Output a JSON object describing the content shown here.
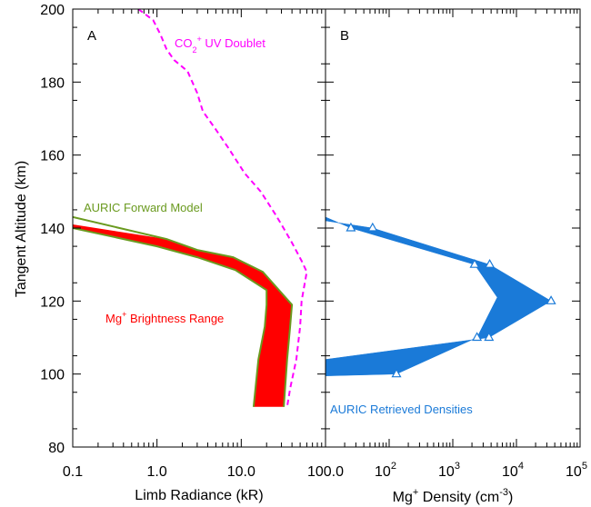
{
  "chart_data": [
    {
      "panel_label": "A",
      "type": "area",
      "x_scale": "log",
      "xlim": [
        0.1,
        100
      ],
      "ylim": [
        80,
        200
      ],
      "x_tick_labels": [
        "0.1",
        "1.0",
        "10.0",
        "100.0"
      ],
      "y_tick_labels": [
        "80",
        "100",
        "120",
        "140",
        "160",
        "180",
        "200"
      ],
      "xlabel": "Limb Radiance (kR)",
      "ylabel": "Tangent Altitude (km)",
      "grid": false,
      "series": [
        {
          "name": "CO2+ UV Doublet",
          "label_main": "CO",
          "label_sub": "2",
          "label_sup": "+",
          "label_tail": " UV Doublet",
          "style": "dashed",
          "color": "#ff00ff",
          "points": [
            [
              0.6,
              200
            ],
            [
              0.9,
              197
            ],
            [
              1.1,
              193
            ],
            [
              1.3,
              189
            ],
            [
              1.6,
              186
            ],
            [
              2.3,
              183
            ],
            [
              3.0,
              177
            ],
            [
              3.5,
              172
            ],
            [
              5,
              167
            ],
            [
              7,
              162
            ],
            [
              11,
              155
            ],
            [
              17,
              150
            ],
            [
              25,
              144
            ],
            [
              30,
              141
            ],
            [
              40,
              136
            ],
            [
              52,
              131
            ],
            [
              60,
              128
            ],
            [
              52,
              120
            ],
            [
              50,
              113
            ],
            [
              45,
              104
            ],
            [
              38,
              96
            ],
            [
              35,
              91
            ]
          ]
        },
        {
          "name": "Mg+ Brightness Range",
          "label_main": "Mg",
          "label_sup": "+",
          "label_tail": " Brightness Range",
          "style": "band",
          "color": "#ff0000",
          "low": [
            [
              0.1,
              140
            ],
            [
              1.0,
              135
            ],
            [
              3,
              132
            ],
            [
              8.5,
              128.5
            ],
            [
              20,
              123
            ],
            [
              20,
              119
            ],
            [
              19,
              113
            ],
            [
              16,
              104
            ],
            [
              14,
              91
            ]
          ],
          "high": [
            [
              0.1,
              141
            ],
            [
              1.3,
              137
            ],
            [
              3,
              134
            ],
            [
              8,
              132
            ],
            [
              18,
              128
            ],
            [
              40,
              119
            ],
            [
              38,
              113
            ],
            [
              35,
              104
            ],
            [
              32,
              91
            ]
          ]
        },
        {
          "name": "AURIC Forward Model",
          "style": "line",
          "color": "#6a9a1f",
          "low": [
            [
              0.1,
              140
            ],
            [
              1.0,
              135
            ],
            [
              3,
              132
            ],
            [
              8.5,
              128.5
            ],
            [
              20,
              123
            ],
            [
              20,
              119
            ],
            [
              19,
              113
            ],
            [
              16,
              104
            ],
            [
              14,
              91
            ]
          ],
          "high": [
            [
              0.1,
              143
            ],
            [
              1.3,
              137
            ],
            [
              3,
              134
            ],
            [
              8,
              132
            ],
            [
              18,
              128
            ],
            [
              40,
              119
            ],
            [
              38,
              113
            ],
            [
              35,
              104
            ],
            [
              32,
              91
            ]
          ]
        }
      ]
    },
    {
      "panel_label": "B",
      "type": "area",
      "x_scale": "log",
      "xlim": [
        10,
        100000
      ],
      "ylim": [
        80,
        200
      ],
      "x_tick_labels": [
        {
          "base": "10",
          "exp": "2"
        },
        {
          "base": "10",
          "exp": "3"
        },
        {
          "base": "10",
          "exp": "4"
        },
        {
          "base": "10",
          "exp": "5"
        }
      ],
      "xlabel": {
        "part1": "Mg",
        "sup1": "+",
        "part2": " Density (cm",
        "sup2": "-3",
        "part3": ")"
      },
      "grid": false,
      "series": [
        {
          "name": "AURIC Retrieved Densities",
          "style": "band",
          "color": "#1a7ad8",
          "low": [
            [
              10,
              143
            ],
            [
              25,
              140
            ],
            [
              2200,
              130
            ],
            [
              5000,
              121
            ],
            [
              2400,
              110
            ],
            [
              130,
              100
            ],
            [
              10,
              99.5
            ]
          ],
          "high": [
            [
              10,
              142
            ],
            [
              55,
              140
            ],
            [
              3800,
              130
            ],
            [
              35000,
              120
            ],
            [
              3700,
              110
            ],
            [
              10,
              104
            ]
          ]
        },
        {
          "name": "Retrieved density points",
          "style": "markers",
          "marker": "triangle",
          "color": "#1a7ad8",
          "points": [
            [
              25,
              140
            ],
            [
              55,
              140
            ],
            [
              2200,
              130
            ],
            [
              3800,
              130
            ],
            [
              35000,
              120
            ],
            [
              2400,
              110
            ],
            [
              3700,
              110
            ],
            [
              130,
              100
            ]
          ]
        }
      ]
    }
  ]
}
